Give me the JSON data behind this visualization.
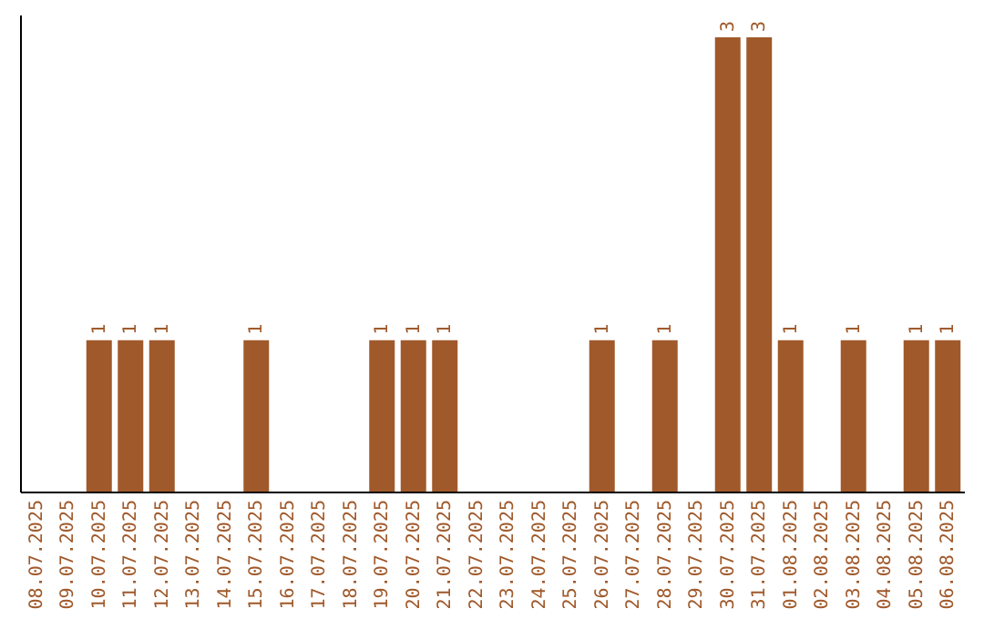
{
  "chart_data": {
    "type": "bar",
    "categories": [
      "08.07.2025",
      "09.07.2025",
      "10.07.2025",
      "11.07.2025",
      "12.07.2025",
      "13.07.2025",
      "14.07.2025",
      "15.07.2025",
      "16.07.2025",
      "17.07.2025",
      "18.07.2025",
      "19.07.2025",
      "20.07.2025",
      "21.07.2025",
      "22.07.2025",
      "23.07.2025",
      "24.07.2025",
      "25.07.2025",
      "26.07.2025",
      "27.07.2025",
      "28.07.2025",
      "29.07.2025",
      "30.07.2025",
      "31.07.2025",
      "01.08.2025",
      "02.08.2025",
      "03.08.2025",
      "04.08.2025",
      "05.08.2025",
      "06.08.2025"
    ],
    "values": [
      0,
      0,
      1,
      1,
      1,
      0,
      0,
      1,
      0,
      0,
      0,
      1,
      1,
      1,
      0,
      0,
      0,
      0,
      1,
      0,
      1,
      0,
      3,
      3,
      1,
      0,
      1,
      0,
      1,
      1
    ],
    "value_labels": [
      null,
      null,
      "1",
      "1",
      "1",
      null,
      null,
      "1",
      null,
      null,
      null,
      "1",
      "1",
      "1",
      null,
      null,
      null,
      null,
      "1",
      null,
      "1",
      null,
      "3",
      "3",
      "1",
      null,
      "1",
      null,
      "1",
      "1"
    ],
    "color": "#a0592a",
    "ylim": [
      0,
      3.15
    ],
    "tick_labels": "x",
    "grid": false
  }
}
